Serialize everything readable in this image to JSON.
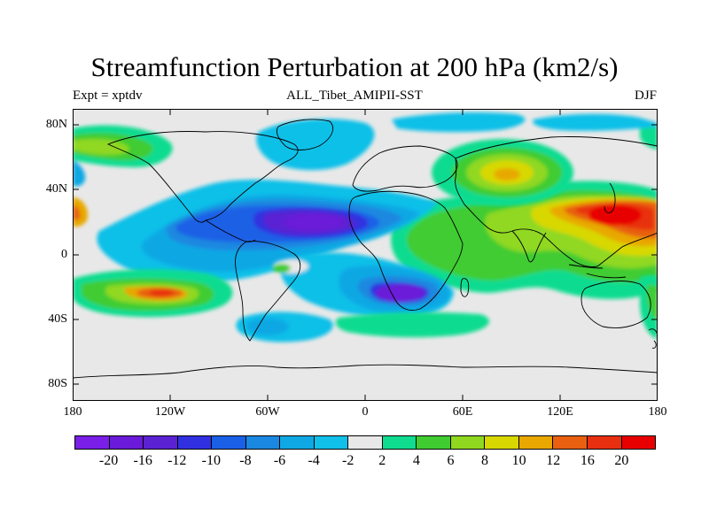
{
  "title": "Streamfunction Perturbation at 200 hPa (km2/s)",
  "subtitle_left": "Expt = xptdv",
  "subtitle_center": "ALL_Tibet_AMIPII-SST",
  "subtitle_right": "DJF",
  "lat_labels": [
    "80N",
    "40N",
    "0",
    "40S",
    "80S"
  ],
  "lon_labels": [
    "180",
    "120W",
    "60W",
    "0",
    "60E",
    "120E",
    "180"
  ],
  "colorbar": {
    "colors": [
      "#7a1fe8",
      "#6a1ad8",
      "#5a22d2",
      "#3030e0",
      "#1a60e6",
      "#1a88e0",
      "#10a8e4",
      "#10c0e8",
      "#e8e8e8",
      "#10dc90",
      "#40cc30",
      "#90d820",
      "#d8d800",
      "#e8a800",
      "#e86010",
      "#e83010",
      "#e80000"
    ],
    "labels": [
      "-20",
      "-16",
      "-12",
      "-10",
      "-8",
      "-6",
      "-4",
      "-2",
      "2",
      "4",
      "6",
      "8",
      "10",
      "12",
      "16",
      "20"
    ]
  }
}
